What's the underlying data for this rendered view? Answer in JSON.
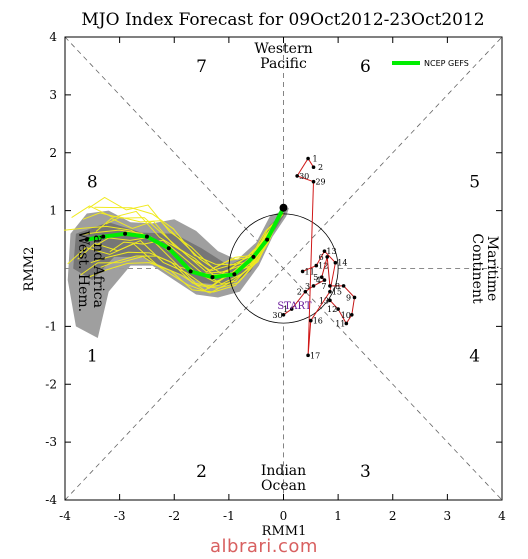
{
  "chart_data": {
    "type": "line",
    "title": "MJO Index Forecast for 09Oct2012-23Oct2012",
    "xlabel": "RMM1",
    "ylabel": "RMM2",
    "xlim": [
      -4,
      4
    ],
    "ylim": [
      -4,
      4
    ],
    "xticks": [
      "-4",
      "-3",
      "-2",
      "-1",
      "0",
      "1",
      "2",
      "3",
      "4"
    ],
    "yticks": [
      "4",
      "3",
      "2",
      "1",
      "-1",
      "-2",
      "-3",
      "-4"
    ],
    "unit_circle_radius": 1,
    "legend": {
      "position": "top-right",
      "entries": [
        "NCEP GEFS"
      ]
    },
    "phase_labels": [
      {
        "text": "1",
        "x": -3.5,
        "y": -1.5
      },
      {
        "text": "2",
        "x": -1.5,
        "y": -3.5
      },
      {
        "text": "3",
        "x": 1.5,
        "y": -3.5
      },
      {
        "text": "4",
        "x": 3.5,
        "y": -1.5
      },
      {
        "text": "5",
        "x": 3.5,
        "y": 1.5
      },
      {
        "text": "6",
        "x": 1.5,
        "y": 3.5
      },
      {
        "text": "7",
        "x": -1.5,
        "y": 3.5
      },
      {
        "text": "8",
        "x": -3.5,
        "y": 1.5
      }
    ],
    "region_labels": {
      "top": [
        "Western",
        "Pacific"
      ],
      "bottom": [
        "Indian",
        "Ocean"
      ],
      "left": [
        "West. Hem.",
        "and Africa"
      ],
      "right": [
        "Maritime",
        "Continent"
      ]
    },
    "start_label": "START",
    "observed_path": {
      "x": [
        0.0,
        0.15,
        0.4,
        0.55,
        0.75,
        0.7,
        0.8,
        0.85,
        1.1,
        1.3,
        1.25,
        1.15,
        1.0,
        0.85
      ],
      "y": [
        -0.8,
        -0.7,
        -0.4,
        -0.3,
        -0.2,
        -0.15,
        0.2,
        -0.3,
        -0.3,
        -0.5,
        -0.8,
        -0.95,
        -0.7,
        -0.55
      ],
      "labels": [
        "30",
        "1",
        "2",
        "3",
        "4",
        "5",
        "6",
        "7",
        "8",
        "9",
        "10",
        "11",
        "12",
        "13"
      ],
      "color": "#1a1aa0"
    },
    "observed_path_older": {
      "x": [
        0.35,
        0.6,
        0.75,
        0.95,
        0.85,
        0.5,
        0.45,
        0.55,
        0.25,
        0.45,
        0.55
      ],
      "y": [
        -0.05,
        0.05,
        0.3,
        0.1,
        -0.4,
        -0.9,
        -1.5,
        1.5,
        1.6,
        1.9,
        1.75
      ],
      "labels": [
        "11",
        "12",
        "13",
        "14",
        "15",
        "16",
        "17",
        "29",
        "30",
        "1",
        "2"
      ],
      "color": "#d01818"
    },
    "ensemble_mean": {
      "name": "NCEP GEFS",
      "x": [
        0.0,
        -0.3,
        -0.55,
        -0.9,
        -1.3,
        -1.7,
        -2.1,
        -2.5,
        -2.9,
        -3.3,
        -3.6
      ],
      "y": [
        1.05,
        0.5,
        0.2,
        -0.1,
        -0.15,
        -0.05,
        0.35,
        0.55,
        0.6,
        0.55,
        0.5
      ],
      "color": "#00ee00"
    },
    "members_color": "#f0ea20",
    "spread_color": "#9a9a9a"
  }
}
